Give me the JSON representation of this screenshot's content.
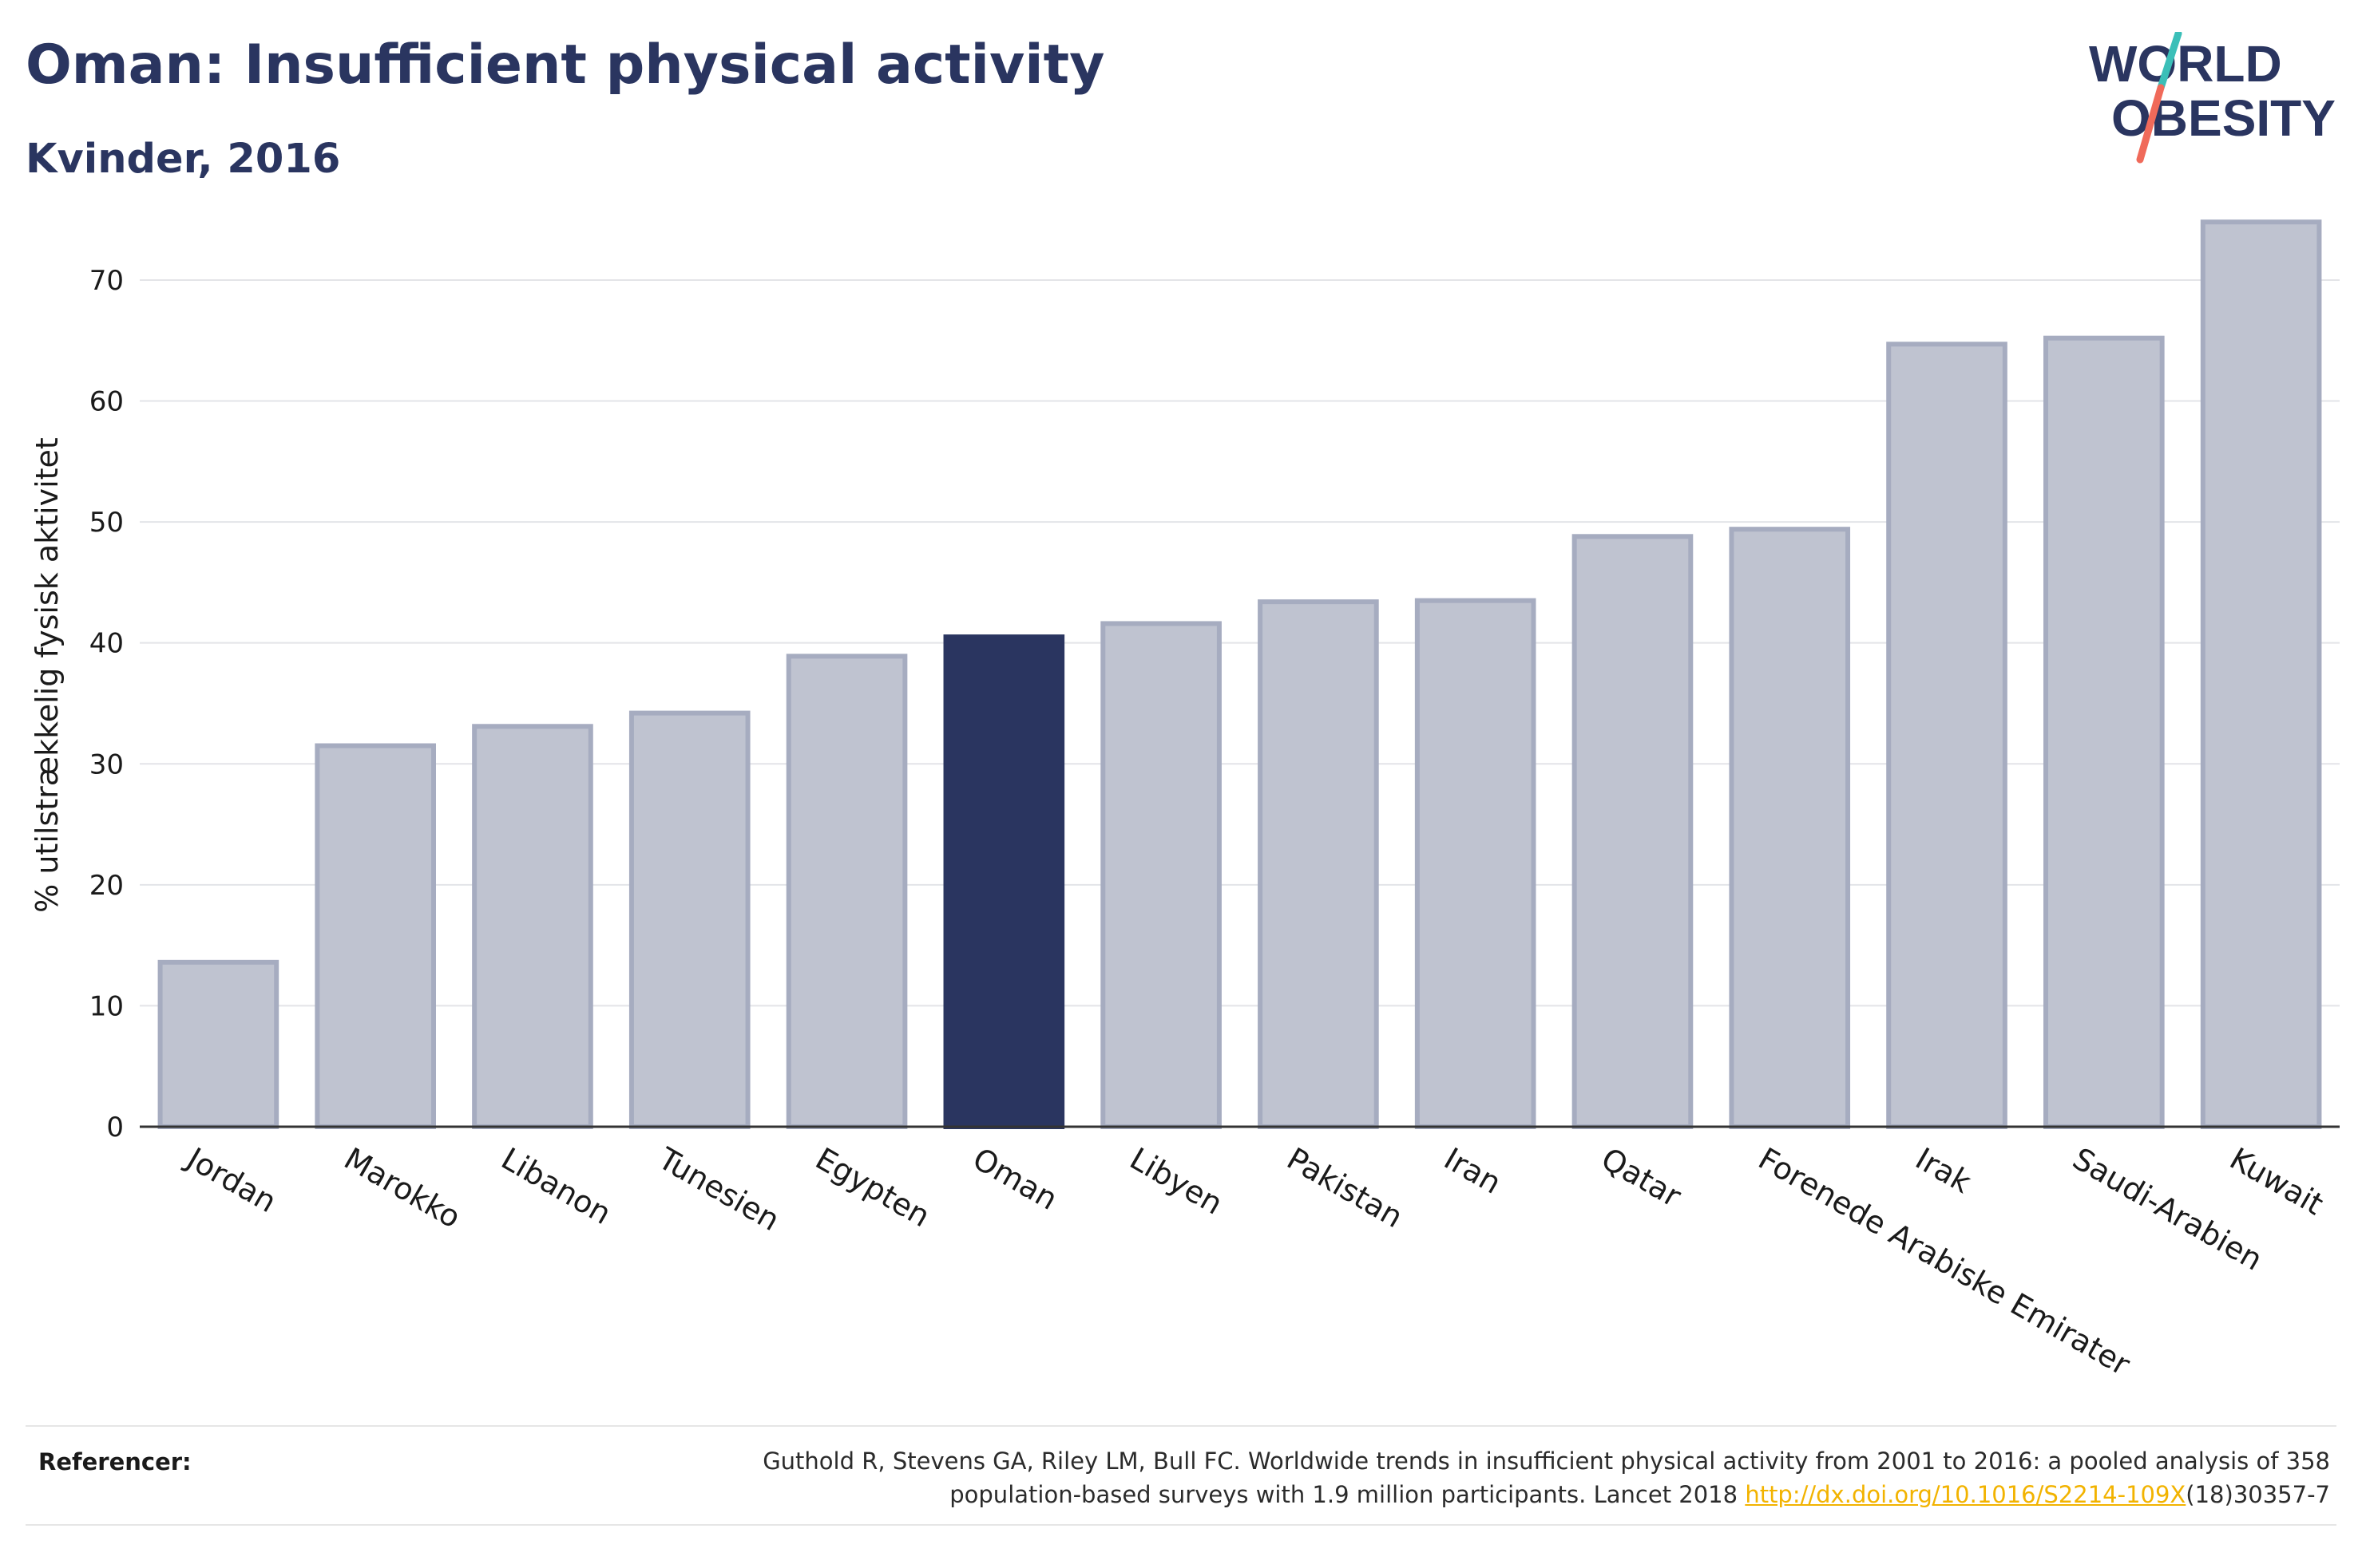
{
  "header": {
    "title": "Oman: Insufficient physical activity",
    "subtitle": "Kvinder, 2016"
  },
  "logo": {
    "line1": "WORLD",
    "line2": "OBESITY",
    "brand_color": "#2a3560",
    "accent_teal": "#3bbfb8",
    "accent_coral": "#f06a5a"
  },
  "chart_data": {
    "type": "bar",
    "ylabel": "% utilstrækkelig fysisk aktivitet",
    "ylim": [
      0,
      76
    ],
    "yticks": [
      0,
      10,
      20,
      30,
      40,
      50,
      60,
      70
    ],
    "grid": true,
    "highlight": "Oman",
    "colors": {
      "bar": "#bfc3d0",
      "bar_edge": "#a6acc0",
      "highlight": "#2a3560"
    },
    "categories": [
      "Jordan",
      "Marokko",
      "Libanon",
      "Tunesien",
      "Egypten",
      "Oman",
      "Libyen",
      "Pakistan",
      "Iran",
      "Qatar",
      "Forenede Arabiske Emirater",
      "Irak",
      "Saudi-Arabien",
      "Kuwait"
    ],
    "values": [
      13.6,
      31.5,
      33.1,
      34.2,
      38.9,
      40.5,
      41.6,
      43.4,
      43.5,
      48.8,
      49.4,
      64.7,
      65.2,
      74.8
    ]
  },
  "footer": {
    "ref_label": "Referencer:",
    "ref_text_line1": "Guthold R, Stevens GA, Riley LM, Bull FC. Worldwide trends in insufficient physical activity from 2001 to 2016: a pooled analysis of 358",
    "ref_text_line2_pre": "population-based surveys with 1.9 million participants. Lancet 2018 ",
    "ref_link": "http://dx.doi.org/10.1016/S2214-109X",
    "ref_text_line2_post": "(18)30357-7"
  }
}
